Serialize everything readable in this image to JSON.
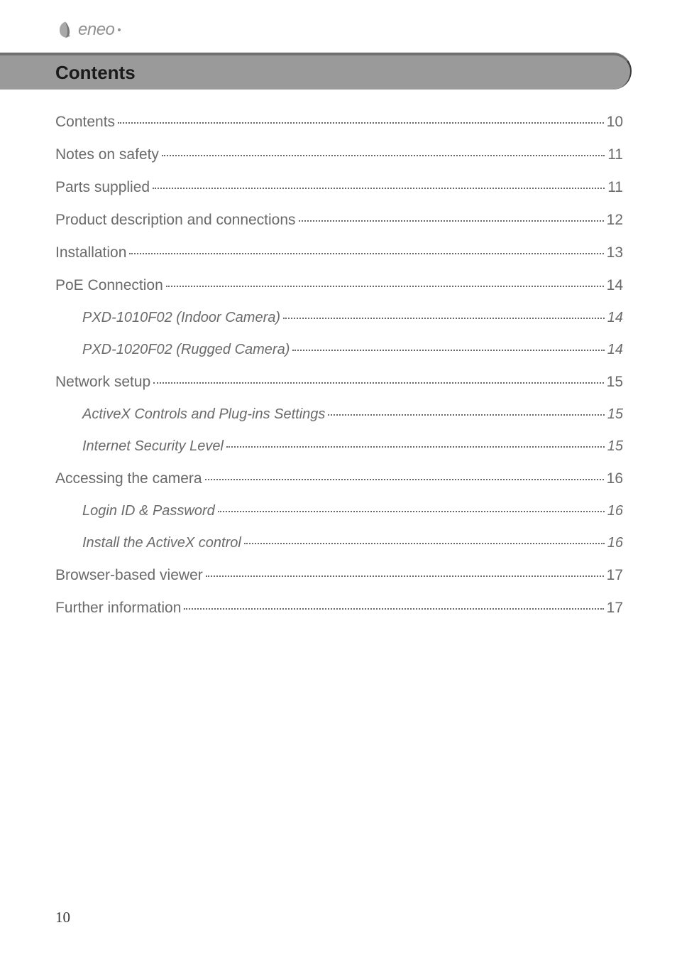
{
  "logo": {
    "text": "eneo"
  },
  "banner": {
    "title": "Contents"
  },
  "toc": [
    {
      "label": "Contents",
      "page": "10",
      "level": 0
    },
    {
      "label": "Notes on safety",
      "page": "11",
      "level": 0
    },
    {
      "label": "Parts supplied",
      "page": "11",
      "level": 0
    },
    {
      "label": "Product description and connections",
      "page": "12",
      "level": 0
    },
    {
      "label": "Installation",
      "page": "13",
      "level": 0
    },
    {
      "label": "PoE Connection",
      "page": "14",
      "level": 0
    },
    {
      "label": "PXD-1010F02 (Indoor Camera)",
      "page": "14",
      "level": 1
    },
    {
      "label": "PXD-1020F02 (Rugged Camera)",
      "page": "14",
      "level": 1
    },
    {
      "label": "Network setup",
      "page": "15",
      "level": 0
    },
    {
      "label": "ActiveX Controls and Plug-ins Settings",
      "page": "15",
      "level": 1
    },
    {
      "label": "Internet Security Level",
      "page": "15",
      "level": 1
    },
    {
      "label": "Accessing the camera",
      "page": "16",
      "level": 0
    },
    {
      "label": "Login ID & Password",
      "page": "16",
      "level": 1
    },
    {
      "label": "Install the ActiveX control",
      "page": "16",
      "level": 1
    },
    {
      "label": "Browser-based viewer",
      "page": "17",
      "level": 0
    },
    {
      "label": "Further information",
      "page": "17",
      "level": 0
    }
  ],
  "page_number": "10",
  "colors": {
    "banner_bg": "#9a9a9a",
    "banner_border_top": "#707070",
    "text_muted": "#6a6a6a",
    "logo_gray": "#909090"
  }
}
